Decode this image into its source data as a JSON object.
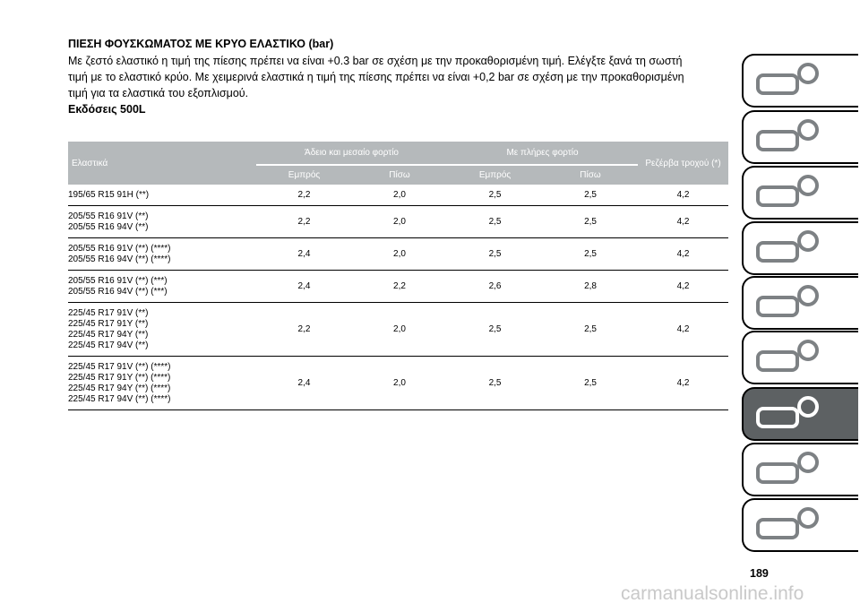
{
  "heading": "ΠΙΕΣΗ ΦΟΥΣΚΩΜΑΤΟΣ ΜΕ ΚΡΥΟ ΕΛΑΣΤΙΚΟ (bar)",
  "intro": "Με ζεστό ελαστικό η τιμή της πίεσης πρέπει να είναι +0.3 bar σε σχέση με την προκαθορισμένη τιμή. Ελέγξτε ξανά τη σωστή τιμή με το ελαστικό κρύο. Με χειμερινά ελαστικά η τιμή της πίεσης πρέπει να είναι +0,2 bar σε σχέση με την προκαθορισμένη τιμή για τα ελαστικά του εξοπλισμού.",
  "subheading": "Εκδόσεις 500L",
  "table": {
    "col_tyre": "Ελαστικά",
    "group_empty": "Άδειο και μεσαίο φορτίο",
    "group_full": "Με πλήρες φορτίο",
    "col_spare": "Ρεζέρβα τροχού (*)",
    "front": "Εμπρός",
    "rear": "Πίσω",
    "rows": [
      {
        "tyres": "195/65 R15 91H (**)",
        "v": [
          "2,2",
          "2,0",
          "2,5",
          "2,5",
          "4,2"
        ]
      },
      {
        "tyres": "205/55 R16 91V (**)\n205/55 R16 94V (**)",
        "v": [
          "2,2",
          "2,0",
          "2,5",
          "2,5",
          "4,2"
        ]
      },
      {
        "tyres": "205/55 R16 91V (**) (****)\n205/55 R16 94V (**) (****)",
        "v": [
          "2,4",
          "2,0",
          "2,5",
          "2,5",
          "4,2"
        ]
      },
      {
        "tyres": "205/55 R16 91V (**) (***)\n205/55 R16 94V (**) (***)",
        "v": [
          "2,4",
          "2,2",
          "2,6",
          "2,8",
          "4,2"
        ]
      },
      {
        "tyres": "225/45 R17 91V (**)\n225/45 R17 91Y (**)\n225/45 R17 94Y (**)\n225/45 R17 94V (**)",
        "v": [
          "2,2",
          "2,0",
          "2,5",
          "2,5",
          "4,2"
        ]
      },
      {
        "tyres": "225/45 R17 91V (**) (****)\n225/45 R17 91Y (**) (****)\n225/45 R17 94Y (**) (****)\n225/45 R17 94V (**) (****)",
        "v": [
          "2,4",
          "2,0",
          "2,5",
          "2,5",
          "4,2"
        ]
      }
    ]
  },
  "side_tabs": [
    {
      "icon": "car-info-icon",
      "active": false
    },
    {
      "icon": "warning-lights-icon",
      "active": false
    },
    {
      "icon": "airbag-seat-icon",
      "active": false
    },
    {
      "icon": "key-steering-wheel-icon",
      "active": false
    },
    {
      "icon": "accident-warning-icon",
      "active": false
    },
    {
      "icon": "car-maintenance-icon",
      "active": false
    },
    {
      "icon": "technical-data-gear-icon",
      "active": true
    },
    {
      "icon": "multimedia-icon",
      "active": false
    },
    {
      "icon": "index-letters-icon",
      "active": false
    }
  ],
  "page_number": "189",
  "watermark": "carmanualsonline.info"
}
